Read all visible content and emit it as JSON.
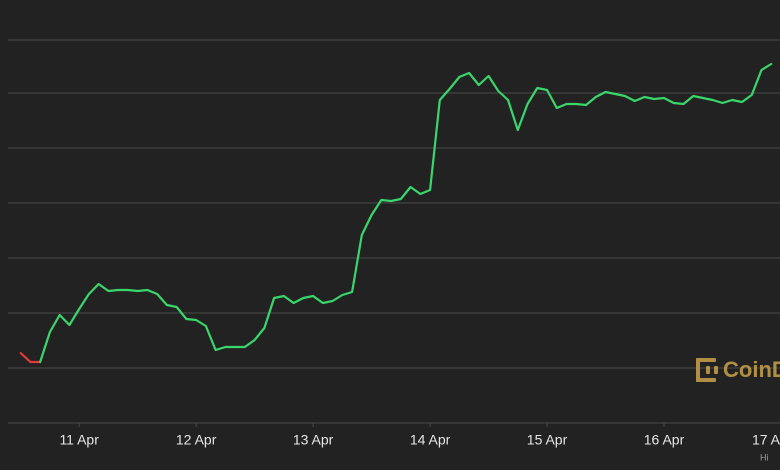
{
  "chart_data": {
    "type": "line",
    "xlim": [
      -14.6,
      143.8
    ],
    "ylim": [
      0,
      423
    ],
    "xticks": [
      {
        "value": 0,
        "label": "11 Apr"
      },
      {
        "value": 24,
        "label": "12 Apr"
      },
      {
        "value": 48,
        "label": "13 Apr"
      },
      {
        "value": 72,
        "label": "14 Apr"
      },
      {
        "value": 96,
        "label": "15 Apr"
      },
      {
        "value": 120,
        "label": "16 Apr"
      },
      {
        "value": 144,
        "label": "17 A"
      }
    ],
    "yticks": [
      0,
      55,
      110,
      165,
      220,
      275,
      330,
      383
    ],
    "grid": true,
    "series": [
      {
        "color": "#e23b3b",
        "x": [
          -12,
          -10,
          -8
        ],
        "values": [
          70,
          61,
          61
        ]
      },
      {
        "color": "#3ad66c",
        "x": [
          -8,
          -6,
          -4,
          -2,
          0,
          2,
          4,
          6,
          8,
          10,
          12,
          14,
          16,
          18,
          20,
          22,
          24,
          26,
          28,
          30,
          32,
          34,
          36,
          38,
          40,
          42,
          44,
          46,
          48,
          50,
          52,
          54,
          56,
          58,
          60,
          62,
          64,
          66,
          68,
          70,
          72,
          74,
          76,
          78,
          80,
          82,
          84,
          86,
          88,
          90,
          92,
          94,
          96,
          98,
          100,
          102,
          104,
          106,
          108,
          110,
          112,
          114,
          116,
          118,
          120,
          122,
          124,
          126,
          128,
          130,
          132,
          134,
          136,
          138,
          140,
          142
        ],
        "values": [
          61,
          91,
          108,
          98,
          114,
          129,
          139,
          132,
          133,
          133,
          132,
          133,
          129,
          118,
          116,
          104,
          103,
          97,
          73,
          76,
          76,
          76,
          83,
          95,
          125,
          127,
          120,
          125,
          127,
          120,
          122,
          128,
          131,
          188,
          208,
          223,
          222,
          224,
          236,
          229,
          233,
          323,
          334,
          346,
          350,
          338,
          347,
          332,
          323,
          293,
          319,
          335,
          333,
          315,
          319,
          319,
          318,
          326,
          331,
          329,
          327,
          322,
          326,
          324,
          325,
          320,
          319,
          327,
          325,
          323,
          320,
          323,
          321,
          328,
          353,
          359
        ]
      }
    ]
  },
  "watermark": "CoinD",
  "footer_text": "Hi"
}
